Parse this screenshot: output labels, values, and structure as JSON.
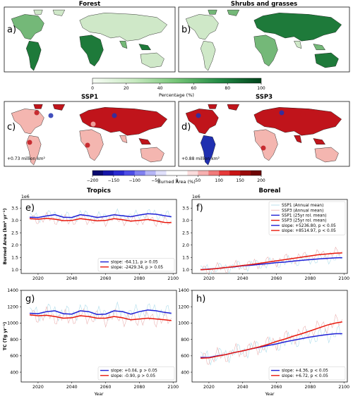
{
  "maps": {
    "forest": {
      "title": "Forest",
      "panel": "a)"
    },
    "shrubs": {
      "title": "Shrubs and grasses",
      "panel": "b)"
    },
    "ssp1": {
      "title": "SSP1",
      "panel": "c)",
      "annotation": "+0.73 million km²"
    },
    "ssp3": {
      "title": "SSP3",
      "panel": "d)",
      "annotation": "+0.88 million km²"
    },
    "colors": {
      "land_base": "#eef5ea",
      "green_light": "#cfe8c8",
      "green_mid": "#74b878",
      "green_dark": "#1e7a3a",
      "red": "#c0141b",
      "blue": "#2030b0",
      "pink": "#f4b6b0",
      "coast": "#111111"
    }
  },
  "colorbars": {
    "percentage": {
      "label": "Percentage (%)",
      "ticks": [
        "0",
        "20",
        "40",
        "60",
        "80",
        "100"
      ],
      "range": [
        0,
        100
      ],
      "cmap": "Greens"
    },
    "burned": {
      "label": "Burned Area (%)",
      "ticks": [
        "−200",
        "−150",
        "−100",
        "−50",
        "0",
        "50",
        "100",
        "150",
        "200"
      ],
      "range": [
        -200,
        200
      ],
      "cmap": "seismic-discrete"
    }
  },
  "columns": {
    "left": "Tropics",
    "right": "Boreal"
  },
  "chart_data": [
    {
      "panel": "e)",
      "type": "line",
      "ylabel": "Burned Area (km² yr⁻¹)",
      "xlabel": "",
      "y_offset": "1e6",
      "xlim": [
        2010,
        2102
      ],
      "ylim": [
        0.85,
        3.85
      ],
      "yticks": [
        "1.0",
        "1.5",
        "2.0",
        "2.5",
        "3.0",
        "3.5"
      ],
      "xticks": [
        "2020",
        "2040",
        "2060",
        "2080",
        "2100"
      ],
      "legend": {
        "position": "lower-right",
        "entries": [
          "slope: -64.11, p > 0.05",
          "slope: -2429.34, p > 0.05"
        ]
      },
      "series": [
        {
          "name": "SSP1 (25yr rol. mean)",
          "color": "#1f1fd6",
          "x": [
            2015,
            2020,
            2025,
            2030,
            2035,
            2040,
            2045,
            2050,
            2055,
            2060,
            2065,
            2070,
            2075,
            2080,
            2085,
            2090,
            2095,
            2099
          ],
          "y": [
            3.13,
            3.12,
            3.18,
            3.23,
            3.13,
            3.12,
            3.23,
            3.19,
            3.12,
            3.16,
            3.23,
            3.19,
            3.15,
            3.22,
            3.27,
            3.25,
            3.19,
            3.15
          ]
        },
        {
          "name": "SSP3 (25yr rol. mean)",
          "color": "#e8180c",
          "x": [
            2015,
            2020,
            2025,
            2030,
            2035,
            2040,
            2045,
            2050,
            2055,
            2060,
            2065,
            2070,
            2075,
            2080,
            2085,
            2090,
            2095,
            2099
          ],
          "y": [
            3.07,
            3.05,
            3.08,
            3.05,
            2.99,
            3.0,
            3.07,
            3.03,
            2.98,
            3.0,
            3.07,
            3.03,
            2.97,
            3.0,
            3.04,
            2.98,
            2.92,
            2.91
          ]
        }
      ]
    },
    {
      "panel": "f)",
      "type": "line",
      "ylabel": "",
      "xlabel": "",
      "y_offset": "1e6",
      "xlim": [
        2010,
        2102
      ],
      "ylim": [
        0.85,
        3.85
      ],
      "yticks": [
        "1.0",
        "1.5",
        "2.0",
        "2.5",
        "3.0",
        "3.5"
      ],
      "xticks": [
        "2020",
        "2040",
        "2060",
        "2080",
        "2100"
      ],
      "legend": {
        "position": "upper-right",
        "entries": [
          "SSP1 (Annual mean)",
          "SSP3 (Annual mean)",
          "SSP1 (25yr rol. mean)",
          "SSP3 (25yr rol. mean)",
          "slope: +5236.80, p < 0.05",
          "slope: +8514.97, p < 0.05"
        ]
      },
      "series": [
        {
          "name": "SSP1 (25yr rol. mean)",
          "color": "#1f1fd6",
          "x": [
            2015,
            2020,
            2025,
            2030,
            2035,
            2040,
            2045,
            2050,
            2055,
            2060,
            2065,
            2070,
            2075,
            2080,
            2085,
            2090,
            2095,
            2099
          ],
          "y": [
            1.0,
            1.03,
            1.05,
            1.09,
            1.12,
            1.16,
            1.18,
            1.22,
            1.25,
            1.29,
            1.31,
            1.35,
            1.38,
            1.41,
            1.44,
            1.46,
            1.48,
            1.49
          ]
        },
        {
          "name": "SSP3 (25yr rol. mean)",
          "color": "#e8180c",
          "x": [
            2015,
            2020,
            2025,
            2030,
            2035,
            2040,
            2045,
            2050,
            2055,
            2060,
            2065,
            2070,
            2075,
            2080,
            2085,
            2090,
            2095,
            2099
          ],
          "y": [
            1.0,
            1.02,
            1.05,
            1.09,
            1.13,
            1.17,
            1.21,
            1.26,
            1.31,
            1.36,
            1.41,
            1.46,
            1.51,
            1.56,
            1.61,
            1.64,
            1.67,
            1.68
          ]
        }
      ]
    },
    {
      "panel": "g)",
      "type": "line",
      "ylabel": "TC (Tg yr⁻¹)",
      "xlabel": "Year",
      "xlim": [
        2010,
        2102
      ],
      "ylim": [
        280,
        1400
      ],
      "yticks": [
        "400",
        "600",
        "800",
        "1000",
        "1200",
        "1400"
      ],
      "xticks": [
        "2020",
        "2040",
        "2060",
        "2080",
        "2100"
      ],
      "legend": {
        "position": "lower-right",
        "entries": [
          "slope: +0.04, p > 0.05",
          "slope: -0.90, p > 0.05"
        ]
      },
      "series": [
        {
          "name": "SSP1 (25yr rol. mean)",
          "color": "#1f1fd6",
          "x": [
            2015,
            2020,
            2025,
            2030,
            2035,
            2040,
            2045,
            2050,
            2055,
            2060,
            2065,
            2070,
            2075,
            2080,
            2085,
            2090,
            2095,
            2099
          ],
          "y": [
            1120,
            1115,
            1140,
            1150,
            1115,
            1110,
            1150,
            1140,
            1105,
            1110,
            1150,
            1140,
            1110,
            1140,
            1160,
            1150,
            1130,
            1120
          ]
        },
        {
          "name": "SSP3 (25yr rol. mean)",
          "color": "#e8180c",
          "x": [
            2015,
            2020,
            2025,
            2030,
            2035,
            2040,
            2045,
            2050,
            2055,
            2060,
            2065,
            2070,
            2075,
            2080,
            2085,
            2090,
            2095,
            2099
          ],
          "y": [
            1100,
            1090,
            1095,
            1080,
            1060,
            1065,
            1090,
            1080,
            1060,
            1060,
            1080,
            1065,
            1040,
            1050,
            1060,
            1050,
            1040,
            1030
          ]
        }
      ]
    },
    {
      "panel": "h)",
      "type": "line",
      "ylabel": "",
      "xlabel": "Year",
      "xlim": [
        2010,
        2102
      ],
      "ylim": [
        280,
        1400
      ],
      "yticks": [
        "400",
        "600",
        "800",
        "1000",
        "1200",
        "1400"
      ],
      "xticks": [
        "2020",
        "2040",
        "2060",
        "2080",
        "2100"
      ],
      "legend": {
        "position": "lower-right",
        "entries": [
          "slope: +4.36, p < 0.05",
          "slope: +6.72, p < 0.05"
        ]
      },
      "series": [
        {
          "name": "SSP1 (25yr rol. mean)",
          "color": "#1f1fd6",
          "x": [
            2015,
            2020,
            2025,
            2030,
            2035,
            2040,
            2045,
            2050,
            2055,
            2060,
            2065,
            2070,
            2075,
            2080,
            2085,
            2090,
            2095,
            2099
          ],
          "y": [
            580,
            580,
            600,
            615,
            640,
            660,
            685,
            705,
            725,
            745,
            770,
            790,
            810,
            830,
            845,
            860,
            870,
            870
          ]
        },
        {
          "name": "SSP3 (25yr rol. mean)",
          "color": "#e8180c",
          "x": [
            2015,
            2020,
            2025,
            2030,
            2035,
            2040,
            2045,
            2050,
            2055,
            2060,
            2065,
            2070,
            2075,
            2080,
            2085,
            2090,
            2095,
            2099
          ],
          "y": [
            570,
            575,
            595,
            615,
            640,
            660,
            685,
            710,
            740,
            775,
            805,
            840,
            870,
            905,
            940,
            975,
            1000,
            1015
          ]
        }
      ]
    }
  ]
}
